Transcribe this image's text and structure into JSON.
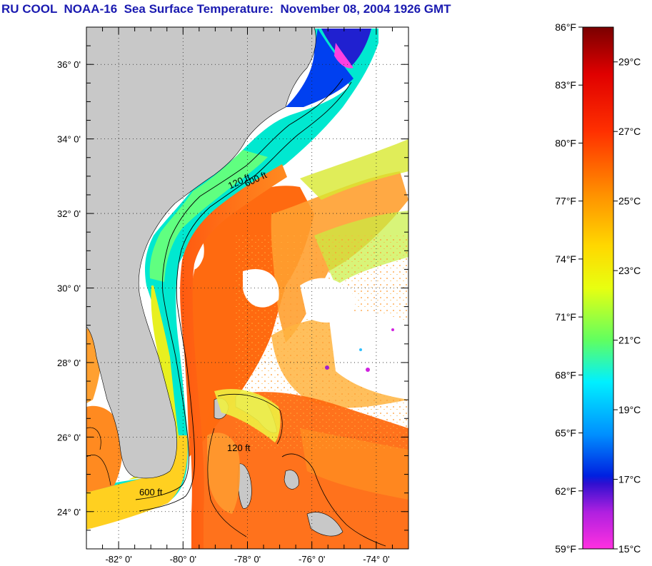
{
  "title": "RU COOL  NOAA-16  Sea Surface Temperature:  November 08, 2004 1926 GMT",
  "map": {
    "lat_range": [
      23,
      37
    ],
    "lon_range": [
      -83,
      -73
    ],
    "lat_ticks": [
      {
        "value": 36,
        "label": "36° 0'"
      },
      {
        "value": 34,
        "label": "34° 0'"
      },
      {
        "value": 32,
        "label": "32° 0'"
      },
      {
        "value": 30,
        "label": "30° 0'"
      },
      {
        "value": 28,
        "label": "28° 0'"
      },
      {
        "value": 26,
        "label": "26° 0'"
      },
      {
        "value": 24,
        "label": "24° 0'"
      }
    ],
    "lon_ticks": [
      {
        "value": -82,
        "label": "-82° 0'"
      },
      {
        "value": -80,
        "label": "-80° 0'"
      },
      {
        "value": -78,
        "label": "-78° 0'"
      },
      {
        "value": -76,
        "label": "-76° 0'"
      },
      {
        "value": -74,
        "label": "-74° 0'"
      }
    ],
    "grid": "dotted",
    "contour_labels": [
      "120 ft",
      "600 ft"
    ],
    "colors": {
      "land": "#c8c8c8",
      "cloud": "#ffffff",
      "frame": "#000000"
    }
  },
  "colorbar": {
    "fahrenheit": [
      "86°F",
      "83°F",
      "80°F",
      "77°F",
      "74°F",
      "71°F",
      "68°F",
      "65°F",
      "62°F",
      "59°F"
    ],
    "celsius": [
      "29°C",
      "27°C",
      "25°C",
      "23°C",
      "21°C",
      "19°C",
      "17°C",
      "15°C"
    ],
    "range_f": [
      59,
      86
    ],
    "gradient_stops": [
      {
        "offset": 0.0,
        "color": "#7a0000"
      },
      {
        "offset": 0.09,
        "color": "#e00000"
      },
      {
        "offset": 0.2,
        "color": "#ff3000"
      },
      {
        "offset": 0.32,
        "color": "#ff9000"
      },
      {
        "offset": 0.42,
        "color": "#ffd800"
      },
      {
        "offset": 0.5,
        "color": "#e8ff10"
      },
      {
        "offset": 0.6,
        "color": "#60ff60"
      },
      {
        "offset": 0.68,
        "color": "#00f0ff"
      },
      {
        "offset": 0.78,
        "color": "#0090ff"
      },
      {
        "offset": 0.86,
        "color": "#0020e0"
      },
      {
        "offset": 0.875,
        "color": "#3010d0"
      },
      {
        "offset": 0.93,
        "color": "#b020e0"
      },
      {
        "offset": 1.0,
        "color": "#ff30e0"
      }
    ]
  }
}
